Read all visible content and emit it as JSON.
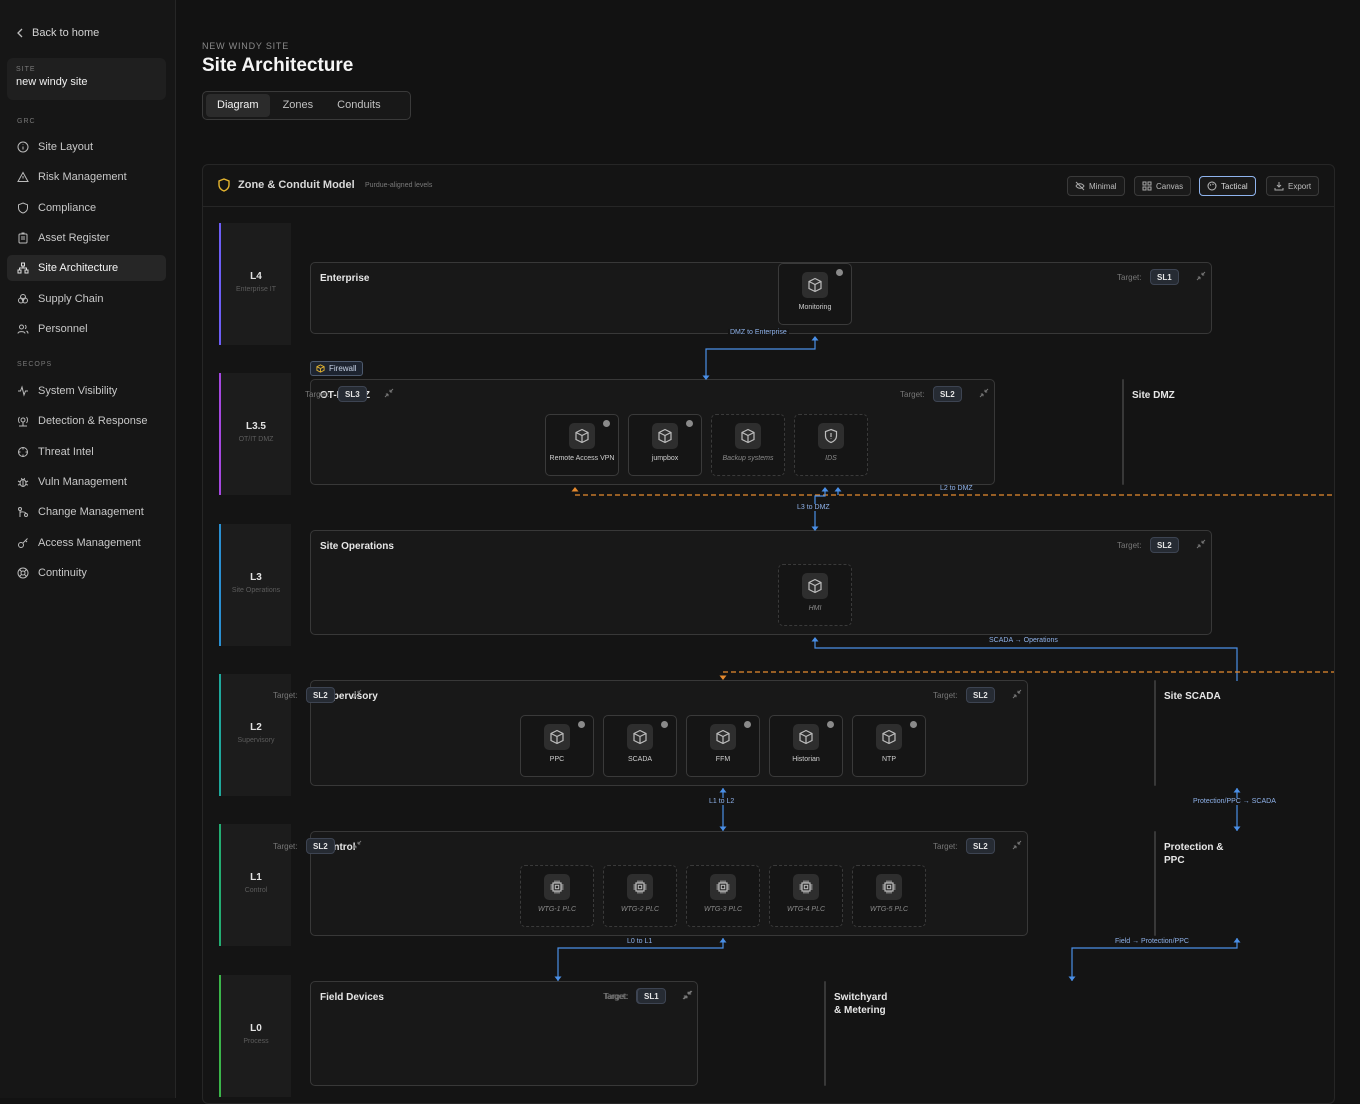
{
  "nav": {
    "back": "Back to home",
    "site_label": "SITE",
    "site_name": "new windy site",
    "grc_label": "GRC",
    "secops_label": "SECOPS",
    "grc": [
      {
        "label": "Site Layout",
        "icon": "info-icon"
      },
      {
        "label": "Risk Management",
        "icon": "warning-icon"
      },
      {
        "label": "Compliance",
        "icon": "shield-icon"
      },
      {
        "label": "Asset Register",
        "icon": "clipboard-icon"
      },
      {
        "label": "Site Architecture",
        "icon": "network-icon"
      },
      {
        "label": "Supply Chain",
        "icon": "boxes-icon"
      },
      {
        "label": "Personnel",
        "icon": "users-icon"
      }
    ],
    "secops": [
      {
        "label": "System Visibility",
        "icon": "activity-icon"
      },
      {
        "label": "Detection & Response",
        "icon": "radar-icon"
      },
      {
        "label": "Threat Intel",
        "icon": "crosshair-icon"
      },
      {
        "label": "Vuln Management",
        "icon": "bug-icon"
      },
      {
        "label": "Change Management",
        "icon": "git-icon"
      },
      {
        "label": "Access Management",
        "icon": "key-icon"
      },
      {
        "label": "Continuity",
        "icon": "lifebuoy-icon"
      }
    ]
  },
  "header": {
    "crumb": "NEW WINDY SITE",
    "title": "Site Architecture",
    "tabs": [
      "Diagram",
      "Zones",
      "Conduits"
    ]
  },
  "panel": {
    "title": "Zone & Conduit Model",
    "subtitle": "Purdue-aligned levels",
    "buttons": [
      "Minimal",
      "Canvas",
      "Tactical",
      "Export"
    ],
    "target_label": "Target:",
    "firewall": "Firewall"
  },
  "levels": [
    {
      "code": "L4",
      "name": "Enterprise IT",
      "color": "#6d5ef6"
    },
    {
      "code": "L3.5",
      "name": "OT/IT DMZ",
      "color": "#a548e0"
    },
    {
      "code": "L3",
      "name": "Site Operations",
      "color": "#2a8fd1"
    },
    {
      "code": "L2",
      "name": "Supervisory",
      "color": "#1fa89c"
    },
    {
      "code": "L1",
      "name": "Control",
      "color": "#23ad72"
    },
    {
      "code": "L0",
      "name": "Process",
      "color": "#3bb54a"
    }
  ],
  "zones": [
    {
      "name": "Enterprise",
      "sl": "SL1"
    },
    {
      "name": "OT-IT DMZ",
      "sl": "SL2"
    },
    {
      "name": "Site DMZ",
      "sl": "SL3"
    },
    {
      "name": "Site Operations",
      "sl": "SL2"
    },
    {
      "name": "Supervisory",
      "sl": "SL2"
    },
    {
      "name": "Site SCADA",
      "sl": "SL2"
    },
    {
      "name": "Control",
      "sl": "SL2"
    },
    {
      "name": "Protection & PPC",
      "sl": "SL2"
    },
    {
      "name": "Field Devices",
      "sl": "SL1"
    },
    {
      "name": "Switchyard & Metering",
      "sl": "SL1"
    }
  ],
  "assets": {
    "enterprise": [
      "Monitoring"
    ],
    "dmz": [
      "Remote Access VPN",
      "jumpbox",
      "Backup systems",
      "IDS"
    ],
    "ops": [
      "HMI"
    ],
    "supervisory": [
      "PPC",
      "SCADA",
      "FFM",
      "Historian",
      "NTP"
    ],
    "control": [
      "WTG-1 PLC",
      "WTG-2 PLC",
      "WTG-3 PLC",
      "WTG-4 PLC",
      "WTG-5 PLC"
    ]
  },
  "conduits": [
    "DMZ to Enterprise",
    "L2 to DMZ",
    "L3 to DMZ",
    "SCADA → Operations",
    "L1 to L2",
    "Protection/PPC → SCADA",
    "L0 to L1",
    "Field → Protection/PPC"
  ],
  "colors": {
    "conduit": "#4a8fe7",
    "dashed": "#e58a2e"
  }
}
